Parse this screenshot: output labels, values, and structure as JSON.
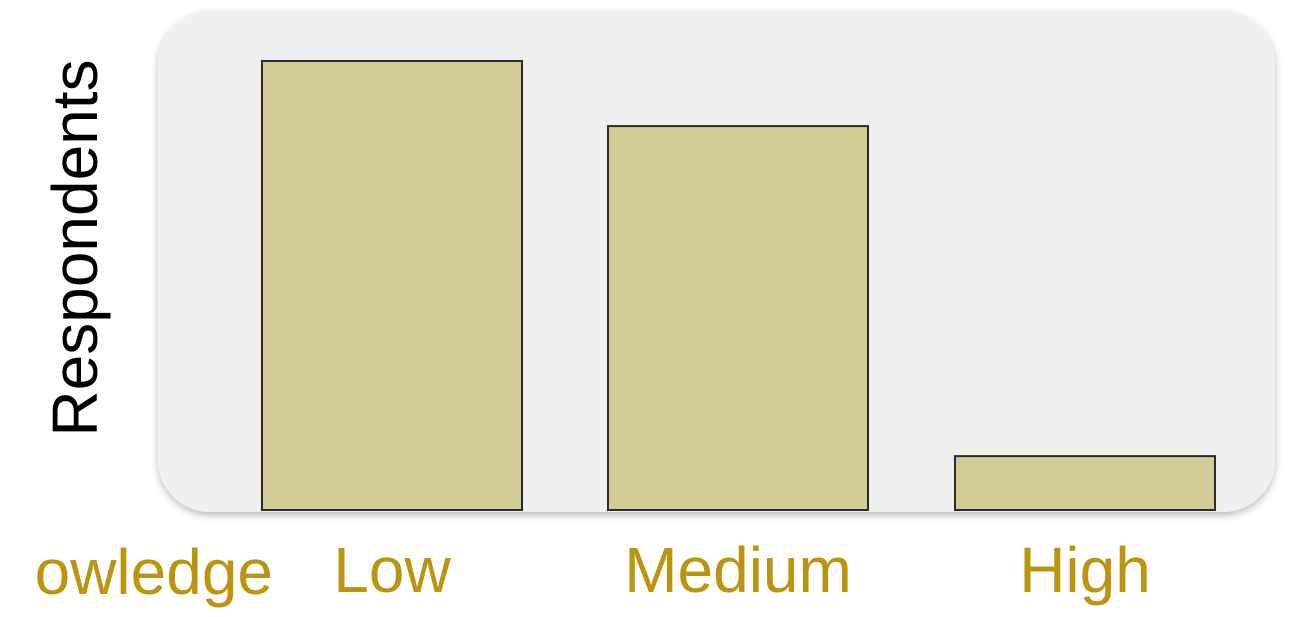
{
  "chart_data": {
    "type": "bar",
    "categories": [
      "Low",
      "Medium",
      "High"
    ],
    "values": [
      100,
      85.5,
      12
    ],
    "ylabel": "Respondents",
    "xlabel": "owledge",
    "ylim": [
      0,
      100
    ],
    "grid": false,
    "legend": "none"
  },
  "colors": {
    "bar_fill": "#d3cc96",
    "bar_stroke": "#2b2b2b",
    "panel_fill": "#f0f0f0",
    "category_label": "#bb9410",
    "axis_label": "#000000"
  }
}
